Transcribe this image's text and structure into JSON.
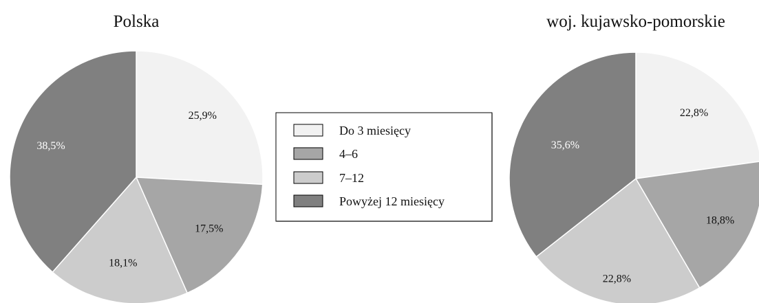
{
  "chart_data": [
    {
      "type": "pie",
      "title": "Polska",
      "categories": [
        "Do 3 miesięcy",
        "4–6",
        "7–12",
        "Powyżej 12 miesięcy"
      ],
      "values": [
        25.9,
        17.5,
        18.1,
        38.5
      ],
      "data_labels": [
        "25,9%",
        "17,5%",
        "18,1%",
        "38,5%"
      ],
      "legend_placement": "center-right"
    },
    {
      "type": "pie",
      "title": "woj. kujawsko-pomorskie",
      "categories": [
        "Do 3 miesięcy",
        "4–6",
        "7–12",
        "Powyżej 12 miesięcy"
      ],
      "values": [
        22.8,
        18.8,
        22.8,
        35.6
      ],
      "data_labels": [
        "22,8%",
        "18,8%",
        "22,8%",
        "35,6%"
      ],
      "legend_placement": "center-left"
    }
  ],
  "legend": {
    "entries": [
      {
        "label": "Do 3 miesięcy",
        "color": "#f2f2f2"
      },
      {
        "label": "4–6",
        "color": "#a6a6a6"
      },
      {
        "label": "7–12",
        "color": "#cccccc"
      },
      {
        "label": "Powyżej 12 miesięcy",
        "color": "#808080"
      }
    ]
  },
  "colors": {
    "slices": [
      "#f2f2f2",
      "#a6a6a6",
      "#cccccc",
      "#808080"
    ],
    "label_dark": "#111111",
    "label_light": "#ffffff",
    "stroke": "#ffffff"
  }
}
